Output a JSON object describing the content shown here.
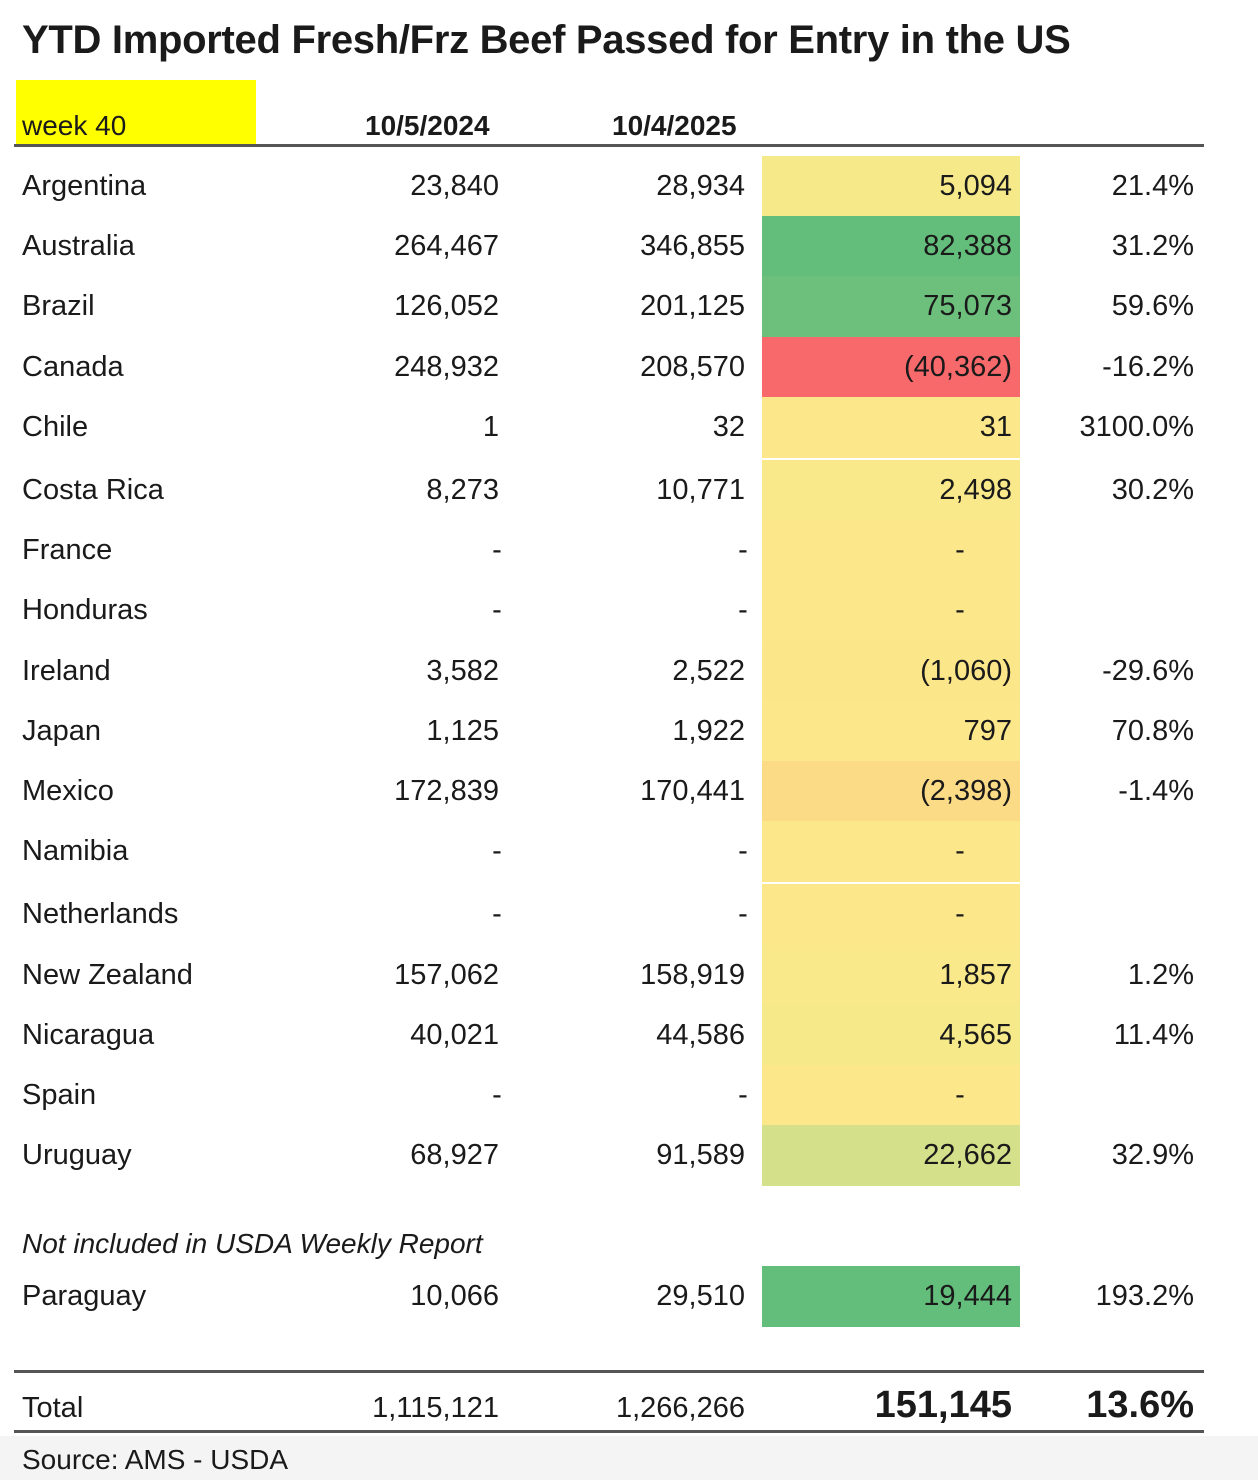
{
  "title": "YTD Imported Fresh/Frz Beef Passed for Entry in the US",
  "header": {
    "week": "week 40",
    "date1": "10/5/2024",
    "date2": "10/4/2025"
  },
  "colors": {
    "yellow_header": "#ffff00",
    "neutral": "#fce88a",
    "green_strong": "#63be7b",
    "green_light": "#d4e08a",
    "red": "#f8696b",
    "orange_light": "#fcd985"
  },
  "rows": [
    {
      "country": "Argentina",
      "y2024": "23,840",
      "y2025": "28,934",
      "change": "5,094",
      "pct": "21.4%",
      "color": "#f6e98a"
    },
    {
      "country": "Australia",
      "y2024": "264,467",
      "y2025": "346,855",
      "change": "82,388",
      "pct": "31.2%",
      "color": "#63be7b"
    },
    {
      "country": "Brazil",
      "y2024": "126,052",
      "y2025": "201,125",
      "change": "75,073",
      "pct": "59.6%",
      "color": "#6cc07c"
    },
    {
      "country": "Canada",
      "y2024": "248,932",
      "y2025": "208,570",
      "change": "(40,362)",
      "pct": "-16.2%",
      "color": "#f8696b"
    },
    {
      "country": "Chile",
      "y2024": "1",
      "y2025": "32",
      "change": "31",
      "pct": "3100.0%",
      "color": "#fce88a"
    },
    {
      "country": "Costa Rica",
      "y2024": "8,273",
      "y2025": "10,771",
      "change": "2,498",
      "pct": "30.2%",
      "color": "#fae98a"
    },
    {
      "country": "France",
      "y2024": "-",
      "y2025": "-",
      "change": "-",
      "pct": "",
      "color": "#fce88a"
    },
    {
      "country": "Honduras",
      "y2024": "-",
      "y2025": "-",
      "change": "-",
      "pct": "",
      "color": "#fce88a"
    },
    {
      "country": "Ireland",
      "y2024": "3,582",
      "y2025": "2,522",
      "change": "(1,060)",
      "pct": "-29.6%",
      "color": "#fce68a"
    },
    {
      "country": "Japan",
      "y2024": "1,125",
      "y2025": "1,922",
      "change": "797",
      "pct": "70.8%",
      "color": "#fce88a"
    },
    {
      "country": "Mexico",
      "y2024": "172,839",
      "y2025": "170,441",
      "change": "(2,398)",
      "pct": "-1.4%",
      "color": "#fcdb86"
    },
    {
      "country": "Namibia",
      "y2024": "-",
      "y2025": "-",
      "change": "-",
      "pct": "",
      "color": "#fce88a"
    },
    {
      "country": "Netherlands",
      "y2024": "-",
      "y2025": "-",
      "change": "-",
      "pct": "",
      "color": "#fce88a"
    },
    {
      "country": "New Zealand",
      "y2024": "157,062",
      "y2025": "158,919",
      "change": "1,857",
      "pct": "1.2%",
      "color": "#fae98a"
    },
    {
      "country": "Nicaragua",
      "y2024": "40,021",
      "y2025": "44,586",
      "change": "4,565",
      "pct": "11.4%",
      "color": "#f6e98a"
    },
    {
      "country": "Spain",
      "y2024": "-",
      "y2025": "-",
      "change": "-",
      "pct": "",
      "color": "#fce88a"
    },
    {
      "country": "Uruguay",
      "y2024": "68,927",
      "y2025": "91,589",
      "change": "22,662",
      "pct": "32.9%",
      "color": "#d4e08a"
    }
  ],
  "note": "Not included in USDA Weekly Report",
  "extra_row": {
    "country": "Paraguay",
    "y2024": "10,066",
    "y2025": "29,510",
    "change": "19,444",
    "pct": "193.2%",
    "color": "#63be7b"
  },
  "total": {
    "label": "Total",
    "y2024": "1,115,121",
    "y2025": "1,266,266",
    "change": "151,145",
    "pct": "13.6%"
  },
  "source": "Source: AMS - USDA"
}
